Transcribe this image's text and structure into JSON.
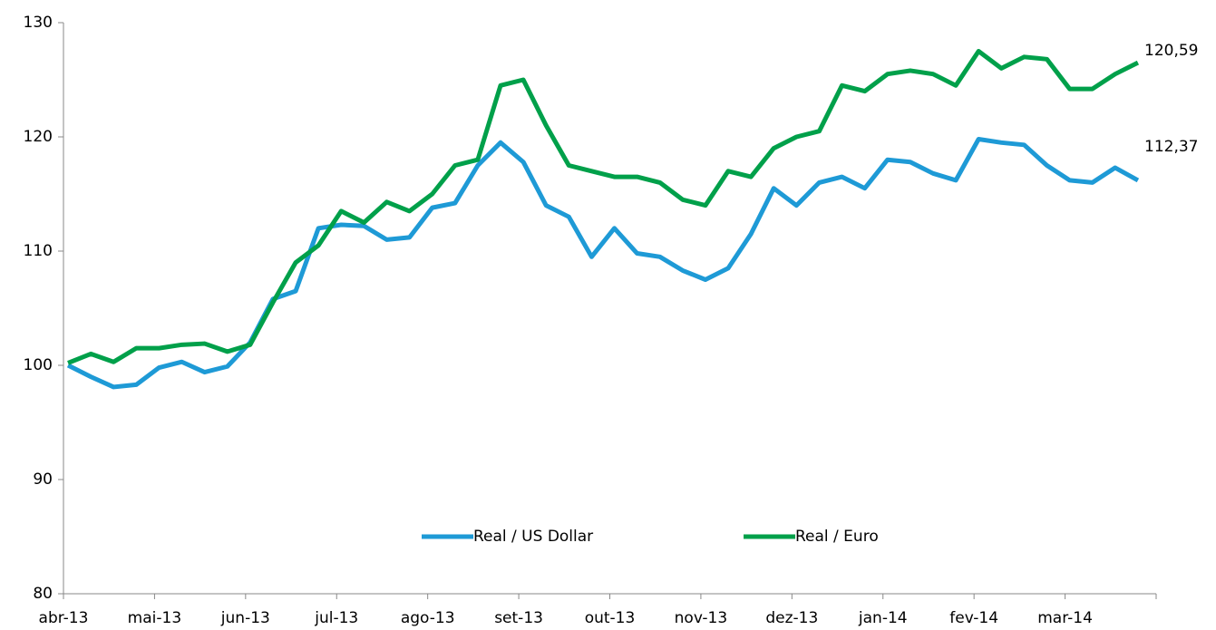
{
  "chart_data": {
    "type": "line",
    "categories": [
      "abr-13",
      null,
      null,
      null,
      "mai-13",
      null,
      null,
      null,
      "jun-13",
      null,
      null,
      null,
      "jul-13",
      null,
      null,
      null,
      "ago-13",
      null,
      null,
      null,
      "set-13",
      null,
      null,
      null,
      "out-13",
      null,
      null,
      null,
      "nov-13",
      null,
      null,
      null,
      "dez-13",
      null,
      null,
      null,
      "jan-14",
      null,
      null,
      null,
      "fev-14",
      null,
      null,
      null,
      "mar-14",
      null,
      null,
      null
    ],
    "series": [
      {
        "name": "Real / US Dollar",
        "color": "#1e9ad6",
        "values": [
          100,
          99,
          98.1,
          98.3,
          99.8,
          100.3,
          99.4,
          99.9,
          102,
          105.8,
          106.5,
          112,
          112.3,
          112.2,
          111,
          111.2,
          113.8,
          114.2,
          117.5,
          119.5,
          117.8,
          114,
          113,
          109.5,
          112,
          109.8,
          109.5,
          108.3,
          107.5,
          108.5,
          111.5,
          115.5,
          114,
          116,
          116.5,
          115.5,
          118,
          117.8,
          116.8,
          116.2,
          119.8,
          119.5,
          119.3,
          117.5,
          116.2,
          116,
          117.3,
          116.2
        ]
      },
      {
        "name": "Real / Euro",
        "color": "#00a04a",
        "values": [
          100.2,
          101,
          100.3,
          101.5,
          101.5,
          101.8,
          101.9,
          101.2,
          101.8,
          105.5,
          109,
          110.5,
          113.5,
          112.5,
          114.3,
          113.5,
          115,
          117.5,
          118,
          124.5,
          125,
          121,
          117.5,
          117,
          116.5,
          116.5,
          116,
          114.5,
          114,
          117,
          116.5,
          119,
          120,
          120.5,
          124.5,
          124,
          125.5,
          125.8,
          125.5,
          124.5,
          127.5,
          126,
          127,
          126.8,
          124.2,
          124.2,
          125.5,
          126.5
        ]
      }
    ],
    "annotations": [
      "120,59",
      "112,37"
    ],
    "ylim": [
      80,
      130
    ],
    "yticks": [
      80,
      90,
      100,
      110,
      120,
      130
    ],
    "grid": false,
    "legend": "bottom"
  }
}
